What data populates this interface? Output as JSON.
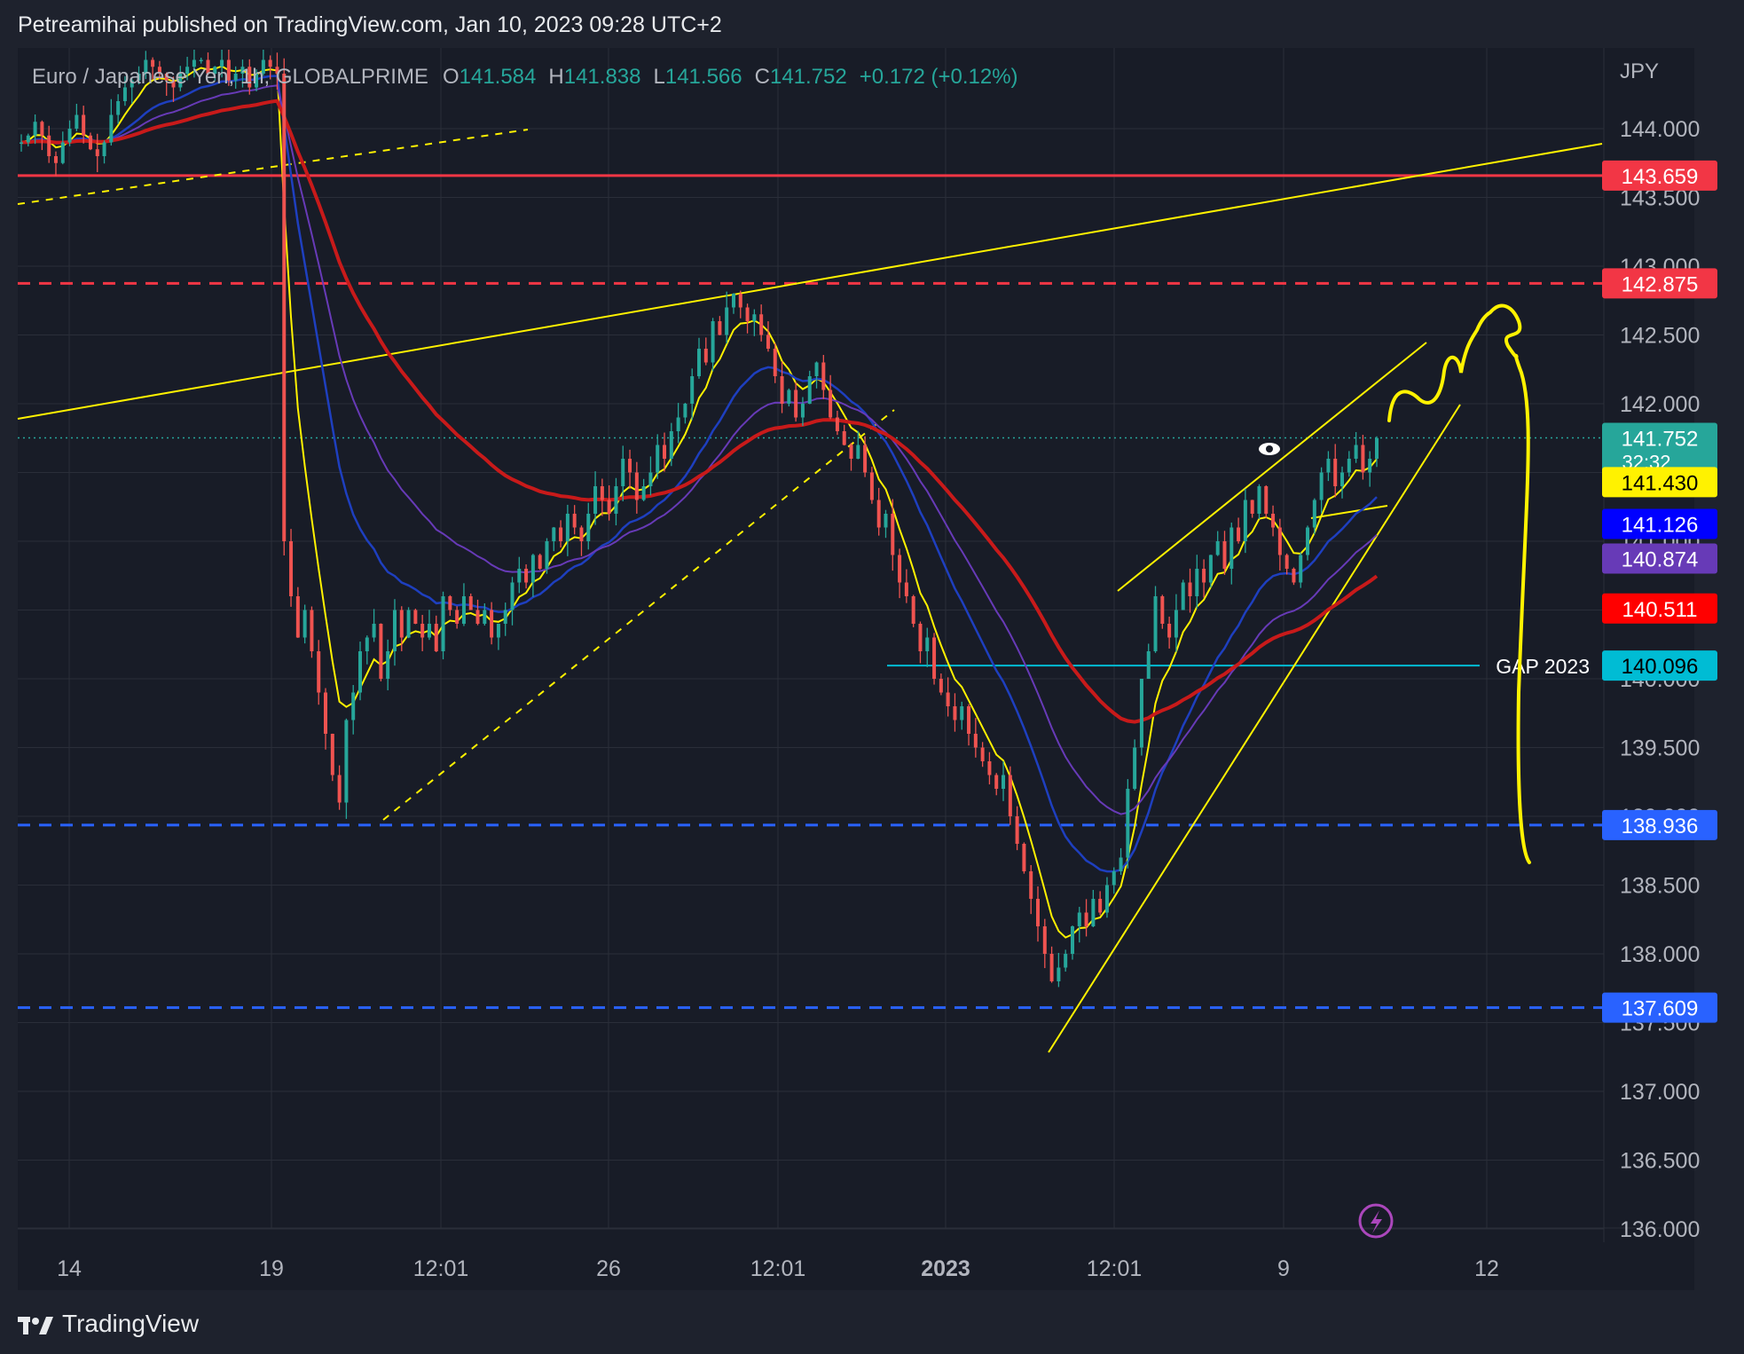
{
  "header": {
    "publisher_line": "Petreamihai published on TradingView.com, Jan 10, 2023 09:28 UTC+2"
  },
  "legend": {
    "symbol": "Euro / Japanese Yen, 1h, GLOBALPRIME",
    "o_label": "O",
    "o_value": "141.584",
    "h_label": "H",
    "h_value": "141.838",
    "l_label": "L",
    "l_value": "141.566",
    "c_label": "C",
    "c_value": "141.752",
    "change": "+0.172 (+0.12%)"
  },
  "footer": {
    "brand": "TradingView"
  },
  "colors": {
    "background": "#1e222d",
    "plot_bg": "#181c27",
    "up": "#26a69a",
    "down": "#ef5350",
    "yellow": "#fff200",
    "red_line": "#f23645",
    "blue_line": "#2962ff"
  },
  "chart_data": {
    "type": "candlestick",
    "currency": "JPY",
    "ylim": [
      135.95,
      144.55
    ],
    "y_ticks": [
      "144.000",
      "143.500",
      "143.000",
      "142.500",
      "142.000",
      "141.500",
      "141.000",
      "140.500",
      "140.000",
      "139.500",
      "139.000",
      "138.500",
      "138.000",
      "137.500",
      "137.000",
      "136.500",
      "136.000"
    ],
    "x_ticks": [
      {
        "label": "14",
        "bold": false
      },
      {
        "label": "19",
        "bold": false
      },
      {
        "label": "12:01",
        "bold": false
      },
      {
        "label": "26",
        "bold": false
      },
      {
        "label": "12:01",
        "bold": false
      },
      {
        "label": "2023",
        "bold": true
      },
      {
        "label": "12:01",
        "bold": false
      },
      {
        "label": "9",
        "bold": false
      },
      {
        "label": "12",
        "bold": false
      }
    ],
    "price_labels": [
      {
        "value": "143.659",
        "color": "#f23645"
      },
      {
        "value": "142.875",
        "color": "#f23645"
      },
      {
        "value": "141.752",
        "sub": "32:32",
        "color": "#26a69a"
      },
      {
        "value": "141.430",
        "color": "#fff200",
        "text_color": "#000000"
      },
      {
        "value": "141.126",
        "color": "#0000ff"
      },
      {
        "value": "140.874",
        "color": "#673ab7"
      },
      {
        "value": "140.511",
        "color": "#ff0000"
      },
      {
        "value": "140.096",
        "color": "#00bcd4",
        "text_color": "#000000"
      },
      {
        "value": "138.936",
        "color": "#2962ff"
      },
      {
        "value": "137.609",
        "color": "#2962ff"
      }
    ],
    "horizontal_levels": [
      {
        "price": 143.659,
        "style": "solid",
        "color": "#f23645"
      },
      {
        "price": 142.875,
        "style": "dashed",
        "color": "#f23645"
      },
      {
        "price": 138.936,
        "style": "dashed",
        "color": "#2962ff"
      },
      {
        "price": 137.609,
        "style": "dashed",
        "color": "#2962ff"
      }
    ],
    "gap_annotation": {
      "label": "GAP 2023",
      "price": 140.096
    },
    "close_path": [
      143.9,
      143.95,
      144.05,
      143.95,
      143.8,
      143.75,
      143.9,
      144.0,
      144.1,
      143.95,
      143.85,
      143.8,
      143.9,
      144.1,
      144.2,
      144.3,
      144.35,
      144.4,
      144.5,
      144.45,
      144.4,
      144.35,
      144.3,
      144.4,
      144.45,
      144.5,
      144.5,
      144.4,
      144.45,
      144.5,
      144.35,
      144.4,
      144.45,
      144.3,
      144.4,
      144.5,
      144.45,
      144.4,
      141.0,
      140.6,
      140.3,
      140.5,
      140.2,
      139.9,
      139.6,
      139.3,
      139.1,
      139.7,
      139.9,
      140.2,
      140.3,
      140.4,
      140.0,
      140.2,
      140.5,
      140.3,
      140.5,
      140.4,
      140.3,
      140.4,
      140.2,
      140.6,
      140.5,
      140.4,
      140.6,
      140.5,
      140.4,
      140.5,
      140.3,
      140.4,
      140.5,
      140.7,
      140.8,
      140.7,
      140.9,
      140.8,
      141.0,
      141.1,
      141.0,
      141.2,
      141.1,
      141.0,
      141.2,
      141.4,
      141.3,
      141.2,
      141.4,
      141.6,
      141.5,
      141.3,
      141.4,
      141.5,
      141.7,
      141.6,
      141.8,
      141.9,
      142.0,
      142.2,
      142.4,
      142.3,
      142.6,
      142.5,
      142.7,
      142.8,
      142.7,
      142.6,
      142.65,
      142.5,
      142.4,
      142.2,
      142.0,
      142.1,
      141.9,
      142.0,
      142.2,
      142.3,
      142.1,
      141.9,
      141.8,
      141.7,
      141.6,
      141.7,
      141.5,
      141.3,
      141.1,
      141.2,
      140.9,
      140.7,
      140.6,
      140.4,
      140.2,
      140.3,
      140.0,
      139.9,
      139.8,
      139.7,
      139.8,
      139.6,
      139.5,
      139.4,
      139.3,
      139.2,
      139.3,
      139.0,
      138.8,
      138.6,
      138.4,
      138.2,
      138.0,
      137.8,
      137.9,
      138.0,
      138.2,
      138.3,
      138.2,
      138.4,
      138.3,
      138.5,
      138.6,
      138.7,
      139.2,
      139.5,
      140.0,
      140.2,
      140.6,
      140.4,
      140.3,
      140.5,
      140.7,
      140.6,
      140.8,
      140.7,
      140.9,
      141.0,
      140.8,
      141.1,
      141.0,
      141.3,
      141.2,
      141.4,
      141.2,
      141.1,
      140.9,
      140.8,
      140.7,
      140.9,
      141.1,
      141.3,
      141.5,
      141.6,
      141.4,
      141.5,
      141.6,
      141.7,
      141.5,
      141.6,
      141.75
    ]
  }
}
